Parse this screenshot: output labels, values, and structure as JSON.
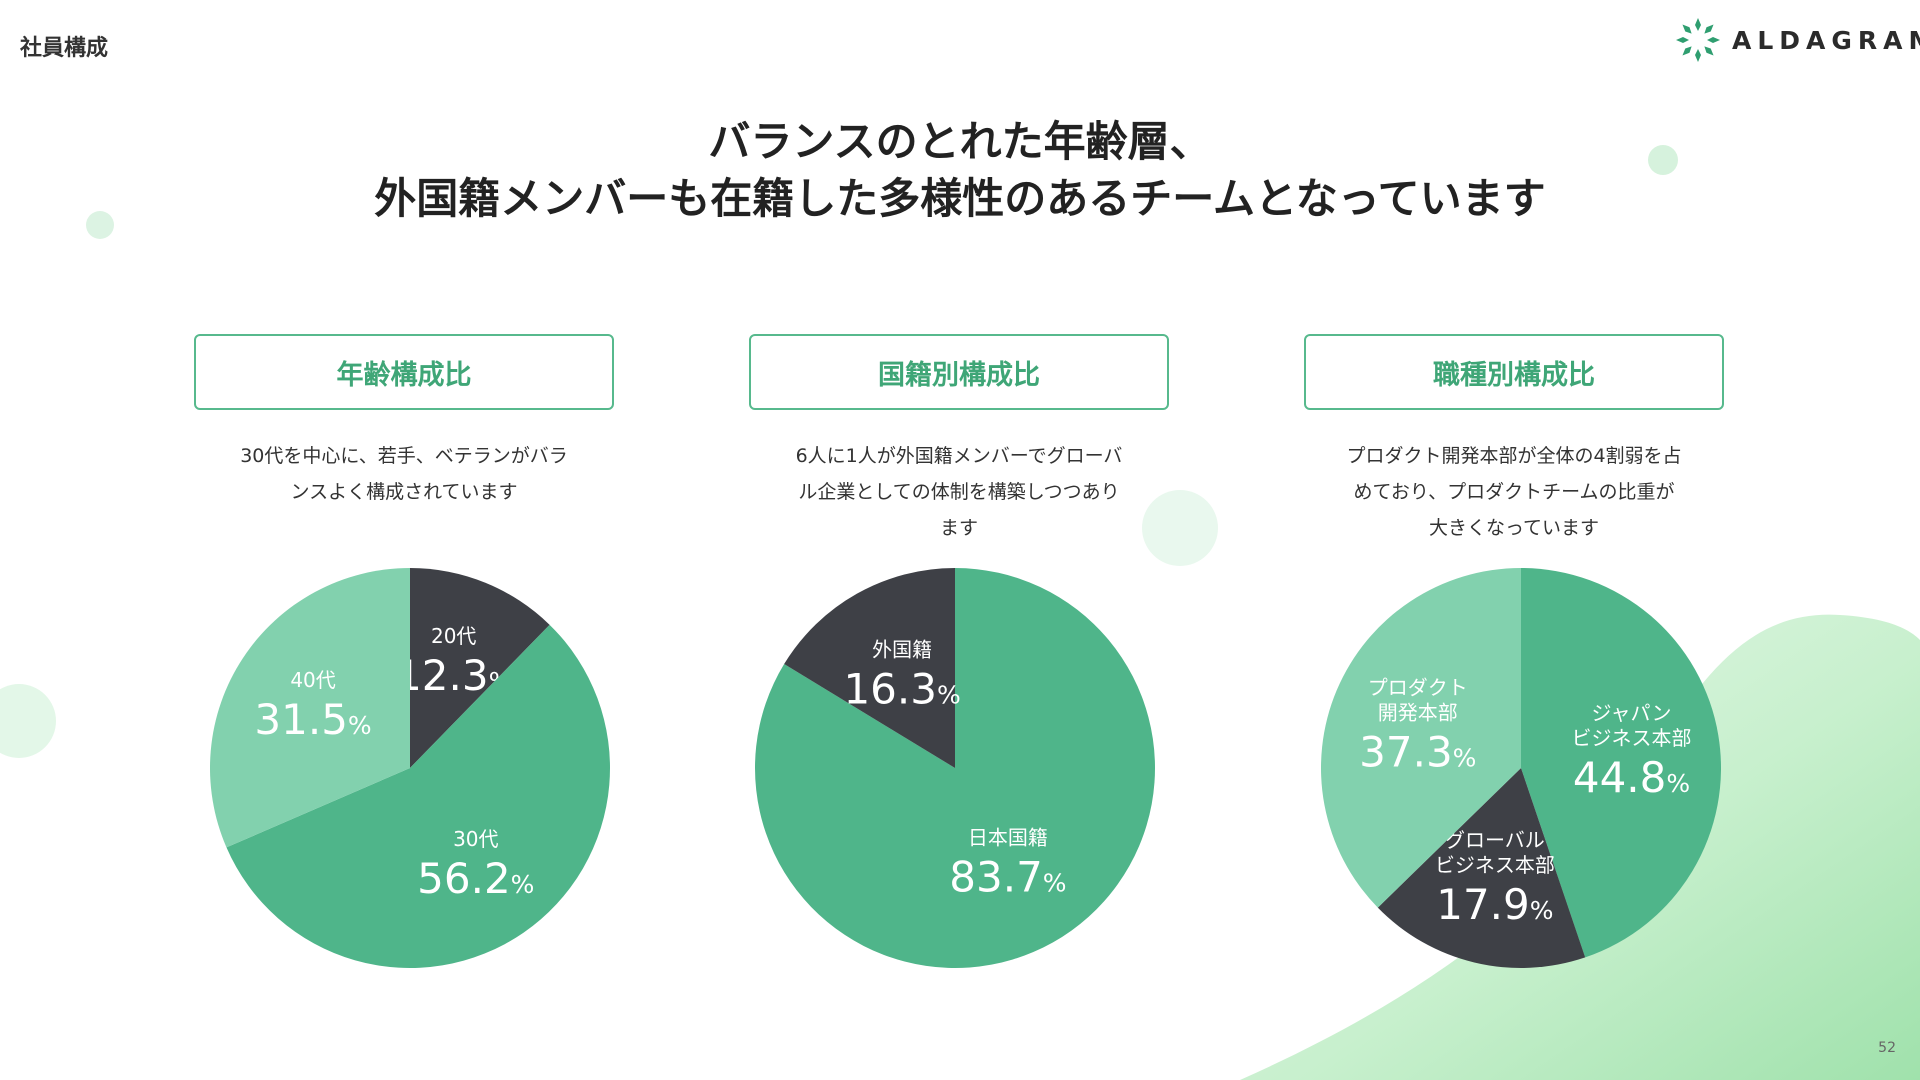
{
  "header": {
    "section": "社員構成",
    "brand": "ALDAGRAM"
  },
  "headline": {
    "line1": "バランスのとれた年齢層、",
    "line2": "外国籍メンバーも在籍した多様性のあるチームとなっています"
  },
  "colors": {
    "green_dark": "#4fb58a",
    "green_light": "#82d1ae",
    "charcoal": "#3e4046",
    "accent_title": "#3fa677",
    "brand_icon": "#2f9e70"
  },
  "cards": [
    {
      "title": "年齢構成比",
      "desc_lines": [
        "30代を中心に、若手、ベテランがバラ",
        "ンスよく構成されています"
      ]
    },
    {
      "title": "国籍別構成比",
      "desc_lines": [
        "6人に1人が外国籍メンバーでグローバ",
        "ル企業としての体制を構築しつつあり",
        "ます"
      ]
    },
    {
      "title": "職種別構成比",
      "desc_lines": [
        "プロダクト開発本部が全体の4割弱を占",
        "めており、プロダクトチームの比重が",
        "大きくなっています"
      ]
    }
  ],
  "chart_data": [
    {
      "type": "pie",
      "title": "年齢構成比",
      "slices": [
        {
          "label": "20代",
          "value": 12.3,
          "color": "#3e4046"
        },
        {
          "label": "30代",
          "value": 56.2,
          "color": "#4fb58a"
        },
        {
          "label": "40代",
          "value": 31.5,
          "color": "#82d1ae"
        }
      ]
    },
    {
      "type": "pie",
      "title": "国籍別構成比",
      "slices": [
        {
          "label": "日本国籍",
          "value": 83.7,
          "color": "#4fb58a"
        },
        {
          "label": "外国籍",
          "value": 16.3,
          "color": "#3e4046"
        }
      ]
    },
    {
      "type": "pie",
      "title": "職種別構成比",
      "slices": [
        {
          "label": "ジャパン\nビジネス本部",
          "value": 44.8,
          "color": "#4fb58a"
        },
        {
          "label": "グローバル\nビジネス本部",
          "value": 17.9,
          "color": "#3e4046"
        },
        {
          "label": "プロダクト\n開発本部",
          "value": 37.3,
          "color": "#82d1ae"
        }
      ]
    }
  ],
  "page_number": "52"
}
